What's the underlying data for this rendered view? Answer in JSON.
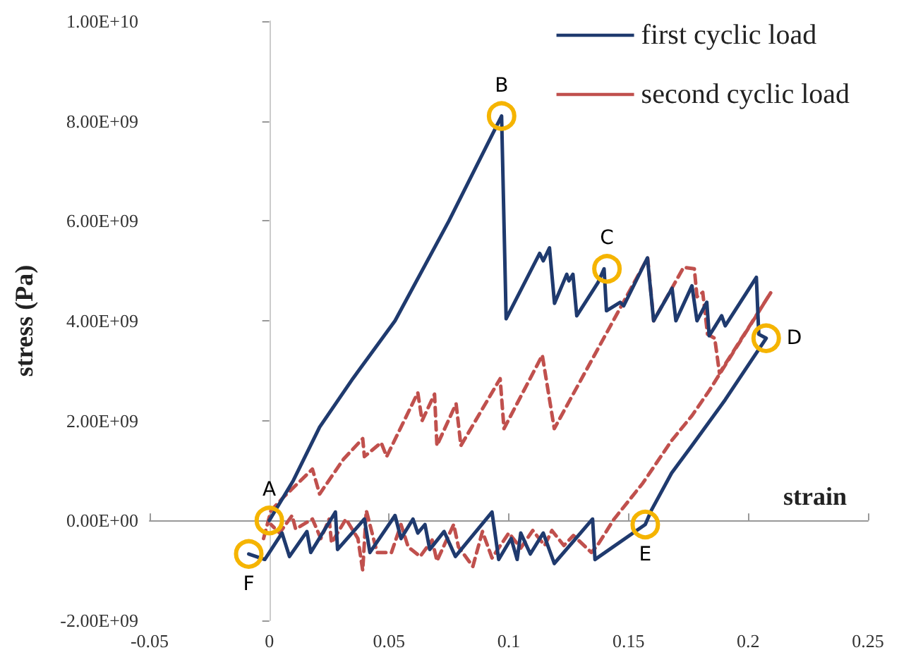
{
  "chart_data": {
    "type": "line",
    "xlabel": "strain",
    "ylabel": "stress (Pa)",
    "xlim": [
      -0.05,
      0.25
    ],
    "xticks": [
      -0.05,
      0,
      0.05,
      0.1,
      0.15,
      0.2,
      0.25
    ],
    "ylim": [
      -2000000000.0,
      10000000000.0
    ],
    "yticks": [
      {
        "value": -2000000000.0,
        "label": "-2.00E+09"
      },
      {
        "value": 0,
        "label": "0.00E+00"
      },
      {
        "value": 2000000000.0,
        "label": "2.00E+09"
      },
      {
        "value": 4000000000.0,
        "label": "4.00E+09"
      },
      {
        "value": 6000000000.0,
        "label": "6.00E+09"
      },
      {
        "value": 8000000000.0,
        "label": "8.00E+09"
      },
      {
        "value": 10000000000.0,
        "label": "1.00E+10"
      }
    ],
    "grid": false,
    "legend": "top right",
    "marker": "none",
    "series": [
      {
        "name": "first cyclic load",
        "color": "#1f3a6e",
        "line_style": "solid",
        "x": [
          0,
          0.01,
          0.021,
          0.035,
          0.0525,
          0.075,
          0.097,
          0.0989,
          0.1129,
          0.1144,
          0.117,
          0.1191,
          0.1242,
          0.1251,
          0.1268,
          0.1284,
          0.1372,
          0.1398,
          0.1408,
          0.1465,
          0.148,
          0.1579,
          0.1605,
          0.1682,
          0.1698,
          0.1765,
          0.1786,
          0.1827,
          0.1837,
          0.1889,
          0.1904,
          0.2034,
          0.2044,
          0.2075,
          0.1904,
          0.1765,
          0.168,
          0.1595,
          0.157,
          0.136,
          0.135,
          0.119,
          0.1144,
          0.109,
          0.105,
          0.1035,
          0.101,
          0.0958,
          0.093,
          0.0777,
          0.073,
          0.067,
          0.065,
          0.062,
          0.06,
          0.055,
          0.0525,
          0.042,
          0.0397,
          0.0285,
          0.0276,
          0.0173,
          0.0157,
          0.0084,
          0.0053,
          -0.0019,
          -0.0086
        ],
        "values": [
          0,
          800000000.0,
          1870000000.0,
          2850000000.0,
          4000000000.0,
          6000000000.0,
          8100000000.0,
          4040000000.0,
          5350000000.0,
          5200000000.0,
          5460000000.0,
          4350000000.0,
          4930000000.0,
          4800000000.0,
          4930000000.0,
          4100000000.0,
          4760000000.0,
          5040000000.0,
          4200000000.0,
          4370000000.0,
          4300000000.0,
          5260000000.0,
          4000000000.0,
          4650000000.0,
          4000000000.0,
          4700000000.0,
          4000000000.0,
          4370000000.0,
          3700000000.0,
          4100000000.0,
          3900000000.0,
          4870000000.0,
          3730000000.0,
          3650000000.0,
          2420000000.0,
          1500000000.0,
          950000000.0,
          200000000.0,
          -80000000.0,
          -780000000.0,
          30000000.0,
          -860000000.0,
          -250000000.0,
          -670000000.0,
          -250000000.0,
          -780000000.0,
          -360000000.0,
          -780000000.0,
          170000000.0,
          -720000000.0,
          -220000000.0,
          -580000000.0,
          -80000000.0,
          -250000000.0,
          30000000.0,
          -360000000.0,
          100000000.0,
          -640000000.0,
          30000000.0,
          -580000000.0,
          170000000.0,
          -640000000.0,
          -220000000.0,
          -720000000.0,
          -250000000.0,
          -780000000.0,
          -670000000.0
        ]
      },
      {
        "name": "second cyclic load",
        "color": "#c0504d",
        "line_style": "dashed",
        "x": [
          -0.0024,
          0.0007,
          0.006,
          0.018,
          0.021,
          0.031,
          0.039,
          0.0397,
          0.0467,
          0.049,
          0.062,
          0.0638,
          0.069,
          0.07,
          0.078,
          0.08,
          0.0964,
          0.098,
          0.114,
          0.119,
          0.158,
          0.1605,
          0.173,
          0.1775,
          0.1786,
          0.181,
          0.183,
          0.186,
          0.188,
          0.2095,
          0.1837,
          0.1765,
          0.168,
          0.156,
          0.144,
          0.137,
          0.1345,
          0.127,
          0.123,
          0.118,
          0.115,
          0.11,
          0.105,
          0.1,
          0.093,
          0.089,
          0.085,
          0.079,
          0.077,
          0.07,
          0.068,
          0.063,
          0.058,
          0.055,
          0.051,
          0.045,
          0.0405,
          0.039,
          0.037,
          0.032,
          0.026,
          0.025,
          0.0215,
          0.018,
          0.011,
          0.0095,
          0.0043,
          0.0007
        ],
        "values": [
          -360000000.0,
          200000000.0,
          470000000.0,
          1030000000.0,
          530000000.0,
          1230000000.0,
          1640000000.0,
          1280000000.0,
          1560000000.0,
          1280000000.0,
          2560000000.0,
          2000000000.0,
          2530000000.0,
          1500000000.0,
          2340000000.0,
          1500000000.0,
          2840000000.0,
          1840000000.0,
          3310000000.0,
          1840000000.0,
          5260000000.0,
          4000000000.0,
          5070000000.0,
          5040000000.0,
          4480000000.0,
          4570000000.0,
          3730000000.0,
          3650000000.0,
          2950000000.0,
          4570000000.0,
          2600000000.0,
          2100000000.0,
          1600000000.0,
          750000000.0,
          30000000.0,
          -500000000.0,
          -640000000.0,
          -300000000.0,
          -500000000.0,
          -200000000.0,
          -500000000.0,
          -200000000.0,
          -550000000.0,
          -250000000.0,
          -750000000.0,
          -220000000.0,
          -920000000.0,
          -530000000.0,
          -80000000.0,
          -810000000.0,
          -390000000.0,
          -720000000.0,
          -530000000.0,
          -80000000.0,
          -640000000.0,
          -640000000.0,
          200000000.0,
          -1000000000.0,
          -360000000.0,
          30000000.0,
          -450000000.0,
          30000000.0,
          -360000000.0,
          30000000.0,
          -170000000.0,
          100000000.0,
          -250000000.0,
          -80000000.0
        ]
      }
    ],
    "annotations": [
      {
        "text": "A",
        "x": 0,
        "y": 0
      },
      {
        "text": "B",
        "x": 0.097,
        "y": 8100000000.0
      },
      {
        "text": "C",
        "x": 0.141,
        "y": 5040000000.0
      },
      {
        "text": "D",
        "x": 0.2075,
        "y": 3650000000.0
      },
      {
        "text": "E",
        "x": 0.157,
        "y": -80000000.0
      },
      {
        "text": "F",
        "x": -0.0086,
        "y": -670000000.0
      }
    ]
  }
}
